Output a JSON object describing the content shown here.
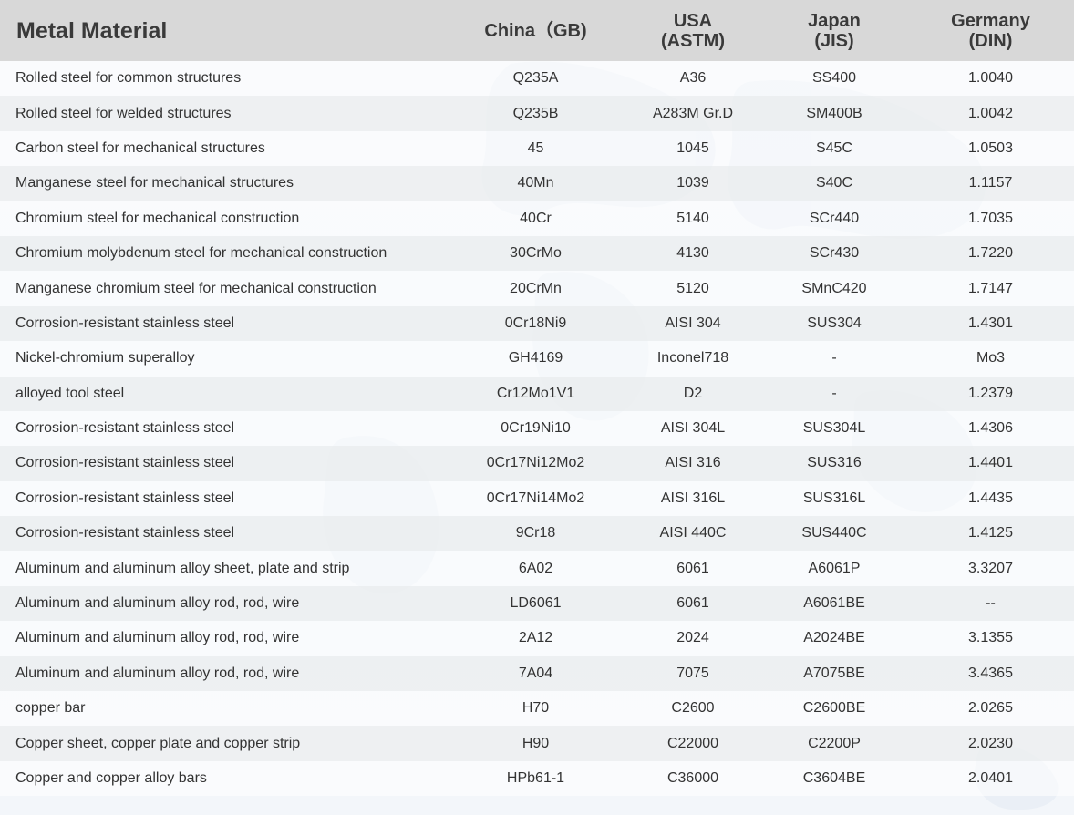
{
  "header": {
    "material": "Metal Material",
    "china": [
      "China（GB)"
    ],
    "usa": [
      "USA",
      "(ASTM)"
    ],
    "japan": [
      "Japan",
      "(JIS)"
    ],
    "germany": [
      "Germany",
      "(DIN)"
    ]
  },
  "rows": [
    [
      "Rolled steel for common structures",
      "Q235A",
      "A36",
      "SS400",
      "1.0040"
    ],
    [
      "Rolled steel for welded structures",
      "Q235B",
      "A283M Gr.D",
      "SM400B",
      "1.0042"
    ],
    [
      "Carbon steel for mechanical structures",
      "45",
      "1045",
      "S45C",
      "1.0503"
    ],
    [
      "Manganese steel for mechanical structures",
      "40Mn",
      "1039",
      "S40C",
      "1.1157"
    ],
    [
      "Chromium steel for mechanical construction",
      "40Cr",
      "5140",
      "SCr440",
      "1.7035"
    ],
    [
      "Chromium molybdenum steel for mechanical construction",
      "30CrMo",
      "4130",
      "SCr430",
      "1.7220"
    ],
    [
      "Manganese chromium steel for mechanical construction",
      "20CrMn",
      "5120",
      "SMnC420",
      "1.7147"
    ],
    [
      "Corrosion-resistant stainless steel",
      "0Cr18Ni9",
      "AISI 304",
      "SUS304",
      "1.4301"
    ],
    [
      "Nickel-chromium superalloy",
      "GH4169",
      "Inconel718",
      "-",
      "Mo3"
    ],
    [
      "alloyed tool steel",
      "Cr12Mo1V1",
      "D2",
      "-",
      "1.2379"
    ],
    [
      "Corrosion-resistant stainless steel",
      "0Cr19Ni10",
      "AISI 304L",
      "SUS304L",
      "1.4306"
    ],
    [
      "Corrosion-resistant stainless steel",
      "0Cr17Ni12Mo2",
      "AISI 316",
      "SUS316",
      "1.4401"
    ],
    [
      "Corrosion-resistant stainless steel",
      "0Cr17Ni14Mo2",
      "AISI 316L",
      "SUS316L",
      "1.4435"
    ],
    [
      "Corrosion-resistant stainless steel",
      "9Cr18",
      "AISI 440C",
      "SUS440C",
      "1.4125"
    ],
    [
      "Aluminum and aluminum alloy sheet, plate and strip",
      "6A02",
      "6061",
      "A6061P",
      "3.3207"
    ],
    [
      "Aluminum and aluminum alloy rod, rod, wire",
      "LD6061",
      "6061",
      "A6061BE",
      "--"
    ],
    [
      "Aluminum and aluminum alloy rod, rod, wire",
      "2A12",
      "2024",
      "A2024BE",
      "3.1355"
    ],
    [
      "Aluminum and aluminum alloy rod, rod, wire",
      "7A04",
      "7075",
      "A7075BE",
      "3.4365"
    ],
    [
      "copper bar",
      "H70",
      "C2600",
      "C2600BE",
      "2.0265"
    ],
    [
      "Copper sheet, copper plate and copper strip",
      "H90",
      "C22000",
      "C2200P",
      "2.0230"
    ],
    [
      "Copper and copper alloy bars",
      "HPb61-1",
      "C36000",
      "C3604BE",
      "2.0401"
    ]
  ]
}
